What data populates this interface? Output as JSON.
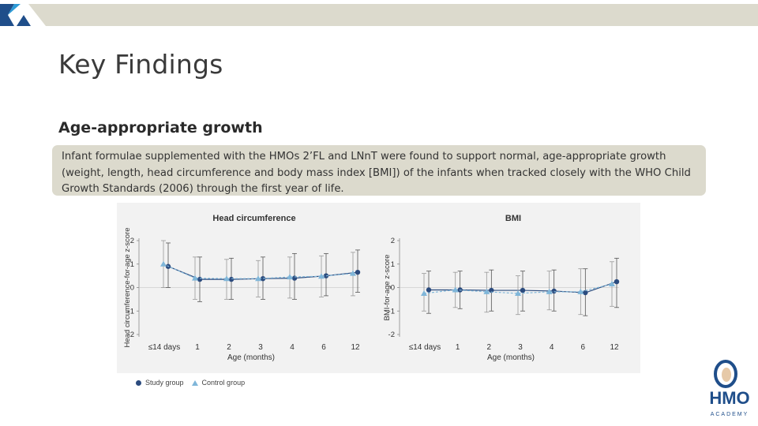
{
  "slide": {
    "title": "Key Findings",
    "subtitle": "Age-appropriate growth",
    "callout_text": "Infant formulae supplemented with the HMOs 2’FL and LNnT were found to support normal, age-appropriate growth (weight, length, head circumference and body mass index [BMI]) of the infants when tracked closely with the WHO Child Growth Standards (2006) through the first year of life."
  },
  "logo": {
    "name": "HMO",
    "sub": "ACADEMY"
  },
  "colors": {
    "study": "#2b4b7e",
    "control": "#7fb6d9",
    "topbar": "#dcdacd",
    "logo_blue": "#1f4e8a"
  },
  "legend": {
    "study": "Study group",
    "control": "Control group"
  },
  "chart_data": [
    {
      "type": "line",
      "title": "Head circumference",
      "ylabel": "Head circumference-for-age z-score",
      "xlabel": "Age (months)",
      "categories": [
        "≤14 days",
        "1",
        "2",
        "3",
        "4",
        "6",
        "12"
      ],
      "ylim": [
        -2,
        2
      ],
      "yticks": [
        "-2",
        "-1",
        "0",
        "1",
        "2"
      ],
      "series": [
        {
          "name": "Study group",
          "values": [
            0.9,
            0.35,
            0.35,
            0.38,
            0.4,
            0.5,
            0.65
          ],
          "error": [
            [
              0.0,
              1.9
            ],
            [
              -0.6,
              1.3
            ],
            [
              -0.5,
              1.25
            ],
            [
              -0.5,
              1.3
            ],
            [
              -0.5,
              1.45
            ],
            [
              -0.35,
              1.45
            ],
            [
              -0.2,
              1.6
            ]
          ]
        },
        {
          "name": "Control group",
          "values": [
            1.0,
            0.4,
            0.38,
            0.38,
            0.45,
            0.48,
            0.6
          ],
          "error": [
            [
              0.0,
              2.0
            ],
            [
              -0.5,
              1.3
            ],
            [
              -0.5,
              1.2
            ],
            [
              -0.4,
              1.15
            ],
            [
              -0.45,
              1.3
            ],
            [
              -0.4,
              1.35
            ],
            [
              -0.35,
              1.5
            ]
          ]
        }
      ]
    },
    {
      "type": "line",
      "title": "BMI",
      "ylabel": "BMI-for-age z-score",
      "xlabel": "Age (months)",
      "categories": [
        "≤14 days",
        "1",
        "2",
        "3",
        "4",
        "6",
        "12"
      ],
      "ylim": [
        -2,
        2
      ],
      "yticks": [
        "-2",
        "-1",
        "0",
        "1",
        "2"
      ],
      "series": [
        {
          "name": "Study group",
          "values": [
            -0.1,
            -0.1,
            -0.12,
            -0.12,
            -0.15,
            -0.22,
            0.25
          ],
          "error": [
            [
              -1.1,
              0.7
            ],
            [
              -0.9,
              0.7
            ],
            [
              -1.0,
              0.75
            ],
            [
              -1.0,
              0.7
            ],
            [
              -1.0,
              0.75
            ],
            [
              -1.2,
              0.8
            ],
            [
              -0.85,
              1.25
            ]
          ]
        },
        {
          "name": "Control group",
          "values": [
            -0.25,
            -0.1,
            -0.18,
            -0.25,
            -0.18,
            -0.18,
            0.15
          ],
          "error": [
            [
              -1.0,
              0.6
            ],
            [
              -0.85,
              0.65
            ],
            [
              -1.05,
              0.65
            ],
            [
              -1.15,
              0.5
            ],
            [
              -0.95,
              0.7
            ],
            [
              -1.15,
              0.8
            ],
            [
              -0.8,
              1.1
            ]
          ]
        }
      ]
    }
  ]
}
